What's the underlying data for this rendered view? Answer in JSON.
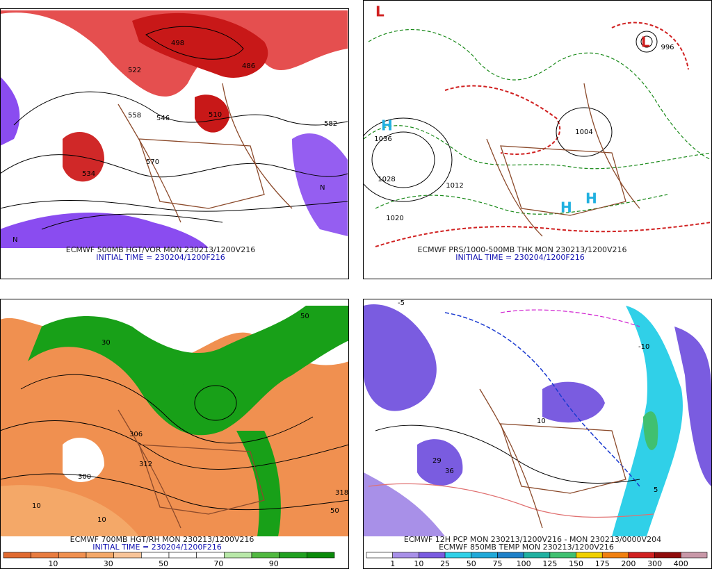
{
  "panels": [
    {
      "caption": "ECMWF 500MB HGT/VOR MON 230213/1200V216",
      "subcaption": "INITIAL TIME = 230204/1200F216",
      "labels": [
        "486",
        "498",
        "510",
        "522",
        "534",
        "546",
        "558",
        "570",
        "582",
        "N",
        "N"
      ]
    },
    {
      "caption": "ECMWF PRS/1000-500MB THK MON 230213/1200V216",
      "subcaption": "INITIAL TIME = 230204/1200F216",
      "labels": [
        "H",
        "1036",
        "1028",
        "1020",
        "1012",
        "1004",
        "996",
        "L",
        "L",
        "H",
        "H"
      ]
    },
    {
      "caption": "ECMWF 700MB HGT/RH MON 230213/1200V216",
      "subcaption": "INITIAL TIME = 230204/1200F216",
      "labels": [
        "10",
        "30",
        "50",
        "306",
        "312",
        "318",
        "300",
        "10",
        "50"
      ]
    },
    {
      "caption": "ECMWF 12H PCP MON 230213/1200V216 - MON 230213/0000V204",
      "subcaption": "ECMWF 850MB TEMP MON 230213/1200V216",
      "labels": [
        "29",
        "36",
        "-10",
        "-5",
        "10",
        "5"
      ]
    }
  ],
  "colorbars": [
    {
      "labels": [
        "10",
        "30",
        "50",
        "70",
        "90"
      ],
      "colors": [
        "#e06a30",
        "#e87c40",
        "#f09050",
        "#f4a868",
        "#f8c498",
        "#ffffff",
        "#ffffff",
        "#ffffff",
        "#b8e8a8",
        "#50b840",
        "#20a020",
        "#0a8a0a"
      ]
    },
    {
      "labels": [
        "1",
        "10",
        "25",
        "50",
        "75",
        "100",
        "125",
        "150",
        "175",
        "200",
        "300",
        "400"
      ],
      "colors": [
        "#ffffff",
        "#a890e8",
        "#7a5ce0",
        "#30d0e8",
        "#20a8d8",
        "#1e80c8",
        "#20b0a0",
        "#40c070",
        "#f0d000",
        "#f08010",
        "#d02020",
        "#900c0c",
        "#c898a8"
      ]
    }
  ]
}
